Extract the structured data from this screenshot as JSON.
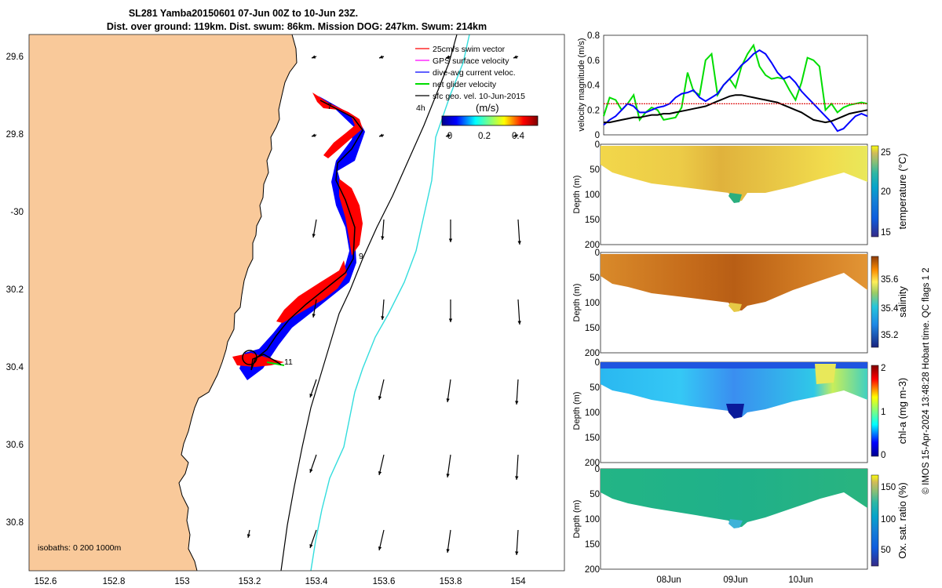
{
  "title": {
    "line1": "SL281 Yamba20150601 07-Jun 00Z to 10-Jun 23Z.",
    "line2": "Dist. over ground: 119km. Dist. swum: 86km. Mission DOG: 247km. Swum: 214km"
  },
  "colors": {
    "land": "#f9c99a",
    "swim": "#ff0000",
    "gps": "#ff00ff",
    "dive_avg": "#0000ff",
    "net": "#00dd00",
    "geo": "#000000",
    "isobath_200": "#000000",
    "isobath_1000": "#33dddd",
    "threshold": "#dd0000"
  },
  "map": {
    "legend": [
      {
        "label": "25cm/s swim vector",
        "color": "#ff0000"
      },
      {
        "label": "GPS surface velocity",
        "color": "#ff00ff"
      },
      {
        "label": "dive-avg current veloc.",
        "color": "#0000ff"
      },
      {
        "label": "net glider velocity",
        "color": "#00dd00"
      },
      {
        "label": "sfc geo. vel. 10-Jun-2015",
        "color": "#000000"
      }
    ],
    "time_label": "4h",
    "colorbar_unit": "(m/s)",
    "colorbar_ticks": [
      "0",
      "0.2",
      "0.4"
    ],
    "isobath_note": "isobaths: 0   200  1000m",
    "lon_ticks": [
      "152.6",
      "152.8",
      "153",
      "153.2",
      "153.4",
      "153.6",
      "153.8",
      "154"
    ],
    "lat_ticks": [
      "29.6",
      "29.8",
      "-30",
      "30.2",
      "30.4",
      "30.6",
      "30.8"
    ],
    "day_markers": [
      "7",
      "9",
      "11"
    ]
  },
  "chart_data": [
    {
      "type": "line",
      "ylabel": "velocity magnitude (m/s)",
      "ylim": [
        0,
        0.8
      ],
      "yticks": [
        "0",
        "0.2",
        "0.4",
        "0.6",
        "0.8"
      ],
      "series": [
        {
          "color": "#00dd00",
          "values": [
            0.15,
            0.3,
            0.28,
            0.2,
            0.25,
            0.32,
            0.12,
            0.18,
            0.22,
            0.2,
            0.12,
            0.13,
            0.14,
            0.22,
            0.5,
            0.35,
            0.32,
            0.6,
            0.65,
            0.32,
            0.4,
            0.45,
            0.38,
            0.55,
            0.65,
            0.72,
            0.55,
            0.48,
            0.45,
            0.46,
            0.45,
            0.36,
            0.28,
            0.42,
            0.62,
            0.6,
            0.55,
            0.2,
            0.25,
            0.18,
            0.22,
            0.24,
            0.25,
            0.26,
            0.25
          ]
        },
        {
          "color": "#0000ff",
          "values": [
            0.08,
            0.12,
            0.15,
            0.2,
            0.25,
            0.23,
            0.18,
            0.18,
            0.2,
            0.22,
            0.23,
            0.25,
            0.3,
            0.33,
            0.34,
            0.36,
            0.3,
            0.27,
            0.3,
            0.33,
            0.4,
            0.45,
            0.5,
            0.56,
            0.6,
            0.65,
            0.68,
            0.65,
            0.58,
            0.5,
            0.45,
            0.47,
            0.42,
            0.35,
            0.3,
            0.25,
            0.2,
            0.15,
            0.1,
            0.03,
            0.05,
            0.1,
            0.15,
            0.17,
            0.15
          ]
        },
        {
          "color": "#000000",
          "values": [
            0.1,
            0.1,
            0.11,
            0.12,
            0.13,
            0.14,
            0.14,
            0.15,
            0.16,
            0.16,
            0.17,
            0.17,
            0.18,
            0.19,
            0.2,
            0.21,
            0.22,
            0.23,
            0.25,
            0.27,
            0.29,
            0.31,
            0.32,
            0.32,
            0.31,
            0.3,
            0.29,
            0.28,
            0.27,
            0.26,
            0.24,
            0.22,
            0.2,
            0.18,
            0.15,
            0.12,
            0.11,
            0.1,
            0.11,
            0.13,
            0.15,
            0.17,
            0.18,
            0.19,
            0.2
          ]
        },
        {
          "color": "#dd0000",
          "values": [
            0.25,
            0.25
          ]
        }
      ]
    },
    {
      "type": "heatmap",
      "ylabel": "Depth (m)",
      "yticks": [
        "0",
        "50",
        "100",
        "150",
        "200"
      ],
      "colorbar_label": "temperature (°C)",
      "colorbar_ticks": [
        "25",
        "20",
        "15"
      ],
      "colormap": "parula"
    },
    {
      "type": "heatmap",
      "ylabel": "Depth (m)",
      "yticks": [
        "0",
        "50",
        "100",
        "150",
        "200"
      ],
      "colorbar_label": "salinity",
      "colorbar_ticks": [
        "35.6",
        "35.4",
        "35.2"
      ],
      "colormap": "parula"
    },
    {
      "type": "heatmap",
      "ylabel": "Depth (m)",
      "yticks": [
        "0",
        "50",
        "100",
        "150",
        "200"
      ],
      "colorbar_label": "chl-a (mg m-3)",
      "colorbar_ticks": [
        "2",
        "1",
        "0"
      ],
      "colormap": "jet"
    },
    {
      "type": "heatmap",
      "ylabel": "Depth (m)",
      "yticks": [
        "0",
        "50",
        "100",
        "150",
        "200"
      ],
      "colorbar_label": "Ox. sat. ratio (%)",
      "colorbar_ticks": [
        "150",
        "100",
        "50"
      ],
      "colormap": "parula"
    }
  ],
  "time_axis": {
    "labels": [
      "08Jun",
      "09Jun",
      "10Jun"
    ]
  },
  "side_note": "© IMOS 15-Apr-2024 13:48:28 Hobart time. QC flags 1  2"
}
